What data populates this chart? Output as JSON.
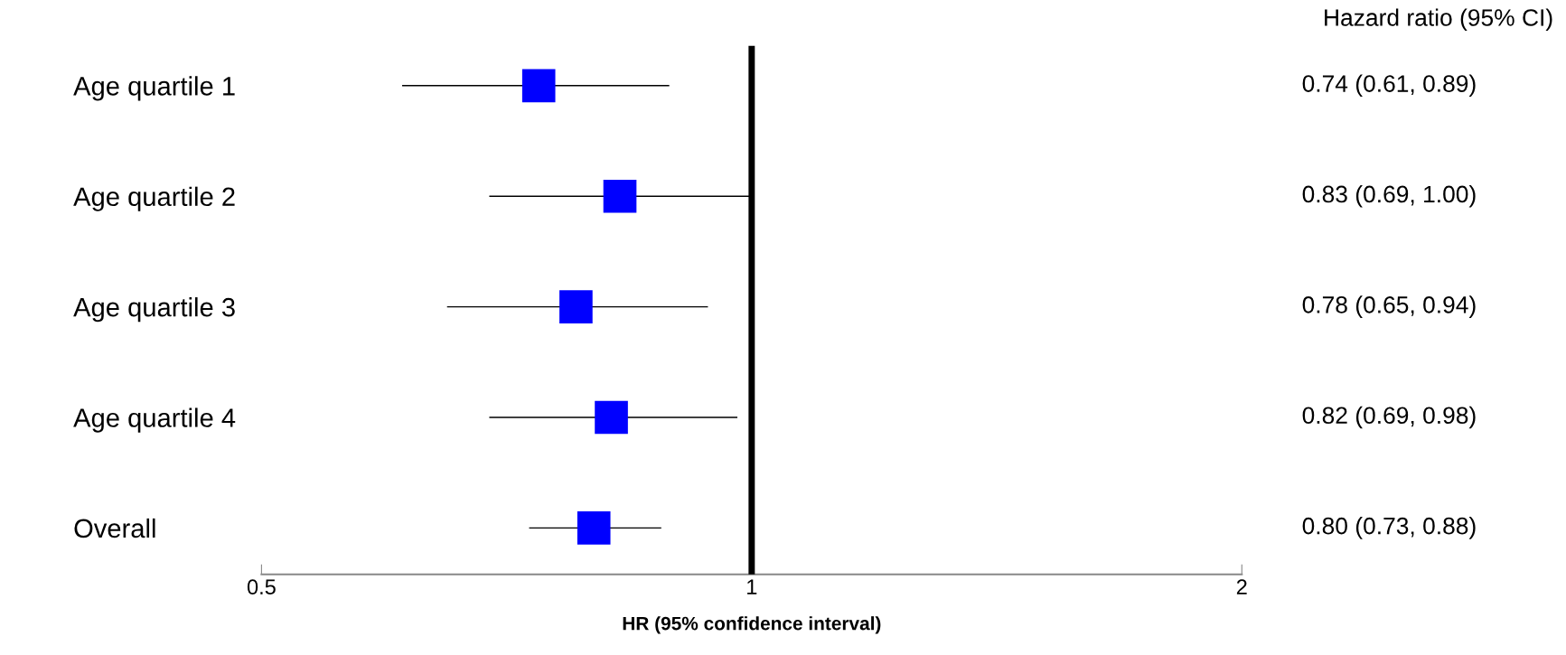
{
  "chart_data": {
    "type": "scatter",
    "orientation": "horizontal",
    "xlabel": "HR (95% confidence interval)",
    "categories": [
      "Age quartile 1",
      "Age quartile 2",
      "Age quartile 3",
      "Age quartile 4",
      "Overall"
    ],
    "values": [
      0.74,
      0.83,
      0.78,
      0.82,
      0.8
    ],
    "errors": [
      [
        0.61,
        0.89
      ],
      [
        0.69,
        1.0
      ],
      [
        0.65,
        0.94
      ],
      [
        0.69,
        0.98
      ],
      [
        0.73,
        0.88
      ]
    ],
    "value_labels": [
      "0.74 (0.61, 0.89)",
      "0.83 (0.69, 1.00)",
      "0.78 (0.65, 0.94)",
      "0.82 (0.69, 0.98)",
      "0.80 (0.73, 0.88)"
    ],
    "color": "#0000ff",
    "marker": "square",
    "log": "x",
    "xlim": [
      0.5,
      2
    ],
    "xticks": [
      0.5,
      1,
      2
    ],
    "ref_lines": [
      {
        "axis": "x",
        "value": 1,
        "color": "#000000"
      }
    ],
    "annotations": [
      "Hazard ratio (95% CI)"
    ],
    "grid": false
  }
}
